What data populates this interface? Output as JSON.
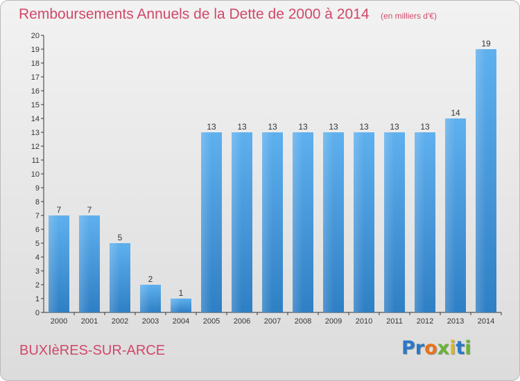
{
  "chart_data": {
    "type": "bar",
    "title": "Remboursements Annuels de la Dette de 2000 à 2014",
    "subtitle": "(en milliers d'€)",
    "categories": [
      "2000",
      "2001",
      "2002",
      "2003",
      "2004",
      "2005",
      "2006",
      "2007",
      "2008",
      "2009",
      "2010",
      "2011",
      "2012",
      "2013",
      "2014"
    ],
    "values": [
      7,
      7,
      5,
      2,
      1,
      13,
      13,
      13,
      13,
      13,
      13,
      13,
      13,
      14,
      19
    ],
    "ylim": [
      0,
      20
    ],
    "yticks": [
      0,
      1,
      2,
      3,
      4,
      5,
      6,
      7,
      8,
      9,
      10,
      11,
      12,
      13,
      14,
      15,
      16,
      17,
      18,
      19,
      20
    ],
    "grid": false,
    "bar_color": "#3a8fd8",
    "xlabel": "",
    "ylabel": ""
  },
  "footer": {
    "town": "BUXIèRES-SUR-ARCE",
    "logo": "Proxiti"
  },
  "colors": {
    "title": "#d0486a",
    "axis": "#333333"
  }
}
